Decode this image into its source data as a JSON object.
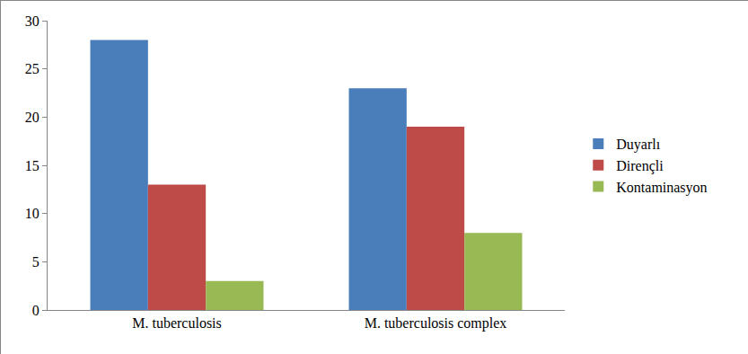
{
  "chart_data": {
    "type": "bar",
    "categories": [
      "M. tuberculosis",
      "M. tuberculosis complex"
    ],
    "series": [
      {
        "name": "Duyarlı",
        "color": "#4a7ebb",
        "values": [
          28,
          23
        ]
      },
      {
        "name": "Dirençli",
        "color": "#be4b48",
        "values": [
          13,
          19
        ]
      },
      {
        "name": "Kontaminasyon",
        "color": "#98b954",
        "values": [
          3,
          8
        ]
      }
    ],
    "ylim": [
      0,
      30
    ],
    "yticks": [
      0,
      5,
      10,
      15,
      20,
      25,
      30
    ],
    "grid": false,
    "legend": "right"
  }
}
